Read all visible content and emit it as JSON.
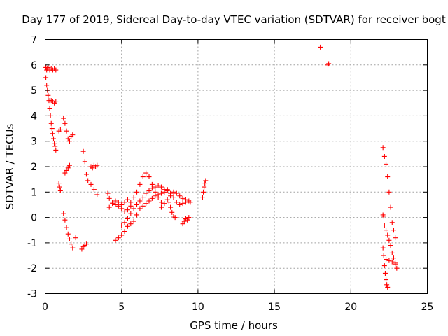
{
  "chart_data": {
    "type": "scatter",
    "title": "Day 177 of 2019, Sidereal Day-to-day VTEC variation (SDTVAR) for receiver bogt",
    "xlabel": "GPS time / hours",
    "ylabel": "SDTVAR / TECUs",
    "xlim": [
      0,
      25
    ],
    "ylim": [
      -3,
      7
    ],
    "grid": true,
    "marker": "+",
    "marker_color": "#ff0000",
    "x_ticks": [
      0,
      5,
      10,
      15,
      20,
      25
    ],
    "x_tick_labels": [
      "0",
      "5",
      "10",
      "15",
      "20",
      "25"
    ],
    "y_ticks": [
      -3,
      -2,
      -1,
      0,
      1,
      2,
      3,
      4,
      5,
      6,
      7
    ],
    "y_tick_labels": [
      "-3",
      "-2",
      "-1",
      "0",
      "1",
      "2",
      "3",
      "4",
      "5",
      "6",
      "7"
    ],
    "segments": [
      {
        "x": [
          0.05,
          0.1,
          0.15,
          0.2,
          0.3,
          0.4,
          0.5,
          0.6,
          0.7
        ],
        "y": [
          5.9,
          5.8,
          5.85,
          5.9,
          5.8,
          5.85,
          5.8,
          5.85,
          5.8
        ]
      },
      {
        "x": [
          0.05,
          0.1,
          0.15,
          0.2,
          0.25,
          0.3,
          0.35,
          0.4,
          0.45,
          0.5,
          0.55,
          0.6,
          0.65,
          0.7
        ],
        "y": [
          5.5,
          5.2,
          5.0,
          4.8,
          4.6,
          4.3,
          4.0,
          3.7,
          3.5,
          3.3,
          3.1,
          2.9,
          2.8,
          2.65
        ]
      },
      {
        "x": [
          0.4,
          0.5,
          0.6,
          0.7
        ],
        "y": [
          4.6,
          4.55,
          4.5,
          4.55
        ]
      },
      {
        "x": [
          0.9,
          1.0
        ],
        "y": [
          3.4,
          3.45
        ]
      },
      {
        "x": [
          0.9,
          0.95,
          1.0
        ],
        "y": [
          1.35,
          1.2,
          1.05
        ]
      },
      {
        "x": [
          1.2,
          1.3,
          1.4,
          1.5,
          1.6,
          1.7,
          1.8
        ],
        "y": [
          3.9,
          3.7,
          3.4,
          3.1,
          3.0,
          3.2,
          3.25
        ]
      },
      {
        "x": [
          1.3,
          1.4,
          1.5,
          1.6
        ],
        "y": [
          1.75,
          1.85,
          1.95,
          2.05
        ]
      },
      {
        "x": [
          1.2,
          1.3,
          1.4,
          1.5,
          1.6,
          1.7,
          1.8
        ],
        "y": [
          0.15,
          -0.1,
          -0.4,
          -0.65,
          -0.85,
          -1.05,
          -1.2
        ]
      },
      {
        "x": [
          2.0
        ],
        "y": [
          -0.8
        ]
      },
      {
        "x": [
          2.4,
          2.5,
          2.6,
          2.7
        ],
        "y": [
          -1.25,
          -1.15,
          -1.1,
          -1.05
        ]
      },
      {
        "x": [
          2.5,
          2.6,
          2.7,
          2.8,
          3.0,
          3.2,
          3.4
        ],
        "y": [
          2.6,
          2.2,
          1.7,
          1.45,
          1.3,
          1.1,
          0.9
        ]
      },
      {
        "x": [
          3.0,
          3.1,
          3.2,
          3.3,
          3.4
        ],
        "y": [
          2.0,
          1.95,
          2.05,
          2.0,
          2.05
        ]
      },
      {
        "x": [
          4.1,
          4.2,
          4.4,
          4.6,
          4.8,
          5.0,
          5.2,
          5.4,
          5.6
        ],
        "y": [
          0.95,
          0.75,
          0.6,
          0.5,
          0.45,
          0.35,
          0.25,
          0.3,
          0.45
        ]
      },
      {
        "x": [
          4.2,
          4.4,
          4.6,
          4.8,
          5.0,
          5.2,
          5.4
        ],
        "y": [
          0.4,
          0.55,
          0.65,
          0.6,
          0.5,
          0.6,
          0.7
        ]
      },
      {
        "x": [
          4.6,
          4.8,
          5.0,
          5.2,
          5.4,
          5.6,
          5.8,
          6.0
        ],
        "y": [
          -0.9,
          -0.8,
          -0.7,
          -0.55,
          -0.35,
          -0.25,
          -0.15,
          0.1
        ]
      },
      {
        "x": [
          5.0,
          5.2,
          5.4,
          5.6,
          5.8,
          6.0,
          6.2,
          6.4,
          6.6,
          6.8,
          7.0,
          7.2,
          7.4,
          7.6
        ],
        "y": [
          -0.3,
          -0.2,
          -0.05,
          0.15,
          0.35,
          0.5,
          0.65,
          0.8,
          0.95,
          1.05,
          1.15,
          1.2,
          1.25,
          1.2
        ]
      },
      {
        "x": [
          5.6,
          5.8,
          6.0,
          6.2,
          6.4,
          6.6,
          6.8,
          7.0,
          7.2,
          7.4,
          7.6
        ],
        "y": [
          0.6,
          0.8,
          1.0,
          1.3,
          1.6,
          1.75,
          1.6,
          1.3,
          1.0,
          0.8,
          0.6
        ]
      },
      {
        "x": [
          6.2,
          6.4,
          6.6,
          6.8,
          7.0,
          7.2,
          7.4,
          7.6,
          7.8,
          8.0
        ],
        "y": [
          0.35,
          0.45,
          0.55,
          0.65,
          0.75,
          0.85,
          0.9,
          0.95,
          1.0,
          1.1
        ]
      },
      {
        "x": [
          7.6,
          7.8,
          8.0,
          8.2,
          8.4,
          8.6,
          8.8,
          9.0,
          9.2,
          9.4
        ],
        "y": [
          0.4,
          0.55,
          0.7,
          0.85,
          1.0,
          0.95,
          0.85,
          0.75,
          0.7,
          0.65
        ]
      },
      {
        "x": [
          7.8,
          8.0,
          8.2,
          8.4,
          8.6,
          8.8,
          9.0,
          9.2
        ],
        "y": [
          1.1,
          1.05,
          0.95,
          0.8,
          0.6,
          0.5,
          0.55,
          0.6
        ]
      },
      {
        "x": [
          8.1,
          8.2,
          8.3,
          8.4,
          8.5
        ],
        "y": [
          0.6,
          0.4,
          0.2,
          0.05,
          0.0
        ]
      },
      {
        "x": [
          9.0,
          9.1,
          9.2,
          9.3,
          9.4,
          9.5
        ],
        "y": [
          -0.25,
          -0.15,
          -0.05,
          -0.1,
          0.0,
          0.6
        ]
      },
      {
        "x": [
          10.3,
          10.35,
          10.4,
          10.45,
          10.5
        ],
        "y": [
          0.8,
          1.0,
          1.2,
          1.35,
          1.45
        ]
      },
      {
        "x": [
          18.0
        ],
        "y": [
          6.7
        ]
      },
      {
        "x": [
          18.5,
          18.55
        ],
        "y": [
          6.0,
          6.05
        ]
      },
      {
        "x": [
          22.1,
          22.2,
          22.3,
          22.4,
          22.5,
          22.6,
          22.7,
          22.8,
          22.9
        ],
        "y": [
          2.75,
          2.4,
          2.1,
          1.6,
          1.0,
          0.4,
          -0.2,
          -0.5,
          -0.8
        ]
      },
      {
        "x": [
          22.2,
          22.3,
          22.4,
          22.5,
          22.6,
          22.7,
          22.8,
          22.9,
          23.0
        ],
        "y": [
          -0.3,
          -0.5,
          -0.7,
          -0.9,
          -1.1,
          -1.4,
          -1.6,
          -1.85,
          -2.0
        ]
      },
      {
        "x": [
          22.1,
          22.15,
          22.2,
          22.25,
          22.3,
          22.35,
          22.4
        ],
        "y": [
          -1.2,
          -1.5,
          -1.9,
          -2.2,
          -2.45,
          -2.65,
          -2.75
        ]
      },
      {
        "x": [
          22.1,
          22.15
        ],
        "y": [
          0.1,
          0.05
        ]
      },
      {
        "x": [
          22.3,
          22.5,
          22.7,
          22.9
        ],
        "y": [
          -1.65,
          -1.7,
          -1.75,
          -1.8
        ]
      }
    ]
  }
}
